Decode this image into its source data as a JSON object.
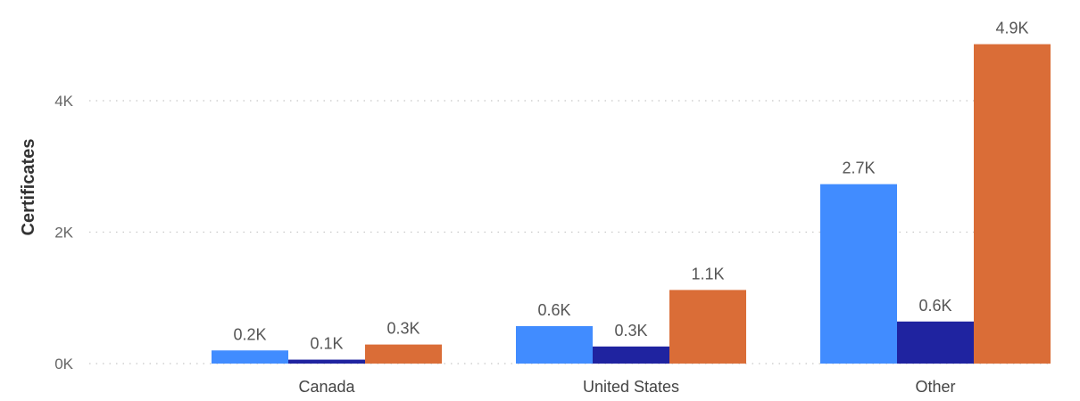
{
  "chart_data": {
    "type": "bar",
    "title": "",
    "xlabel": "",
    "ylabel": "Certificates",
    "ylim": [
      0,
      5000
    ],
    "yticks": [
      {
        "value": 0,
        "label": "0K"
      },
      {
        "value": 2000,
        "label": "2K"
      },
      {
        "value": 4000,
        "label": "4K"
      }
    ],
    "grid": true,
    "categories": [
      "Canada",
      "United States",
      "Other"
    ],
    "series": [
      {
        "color": "#418CFF",
        "values": [
          200,
          570,
          2730
        ],
        "labels": [
          "0.2K",
          "0.6K",
          "2.7K"
        ]
      },
      {
        "color": "#1F23A0",
        "values": [
          60,
          260,
          640
        ],
        "labels": [
          "0.1K",
          "0.3K",
          "0.6K"
        ]
      },
      {
        "color": "#DA6D37",
        "values": [
          290,
          1120,
          4860
        ],
        "labels": [
          "0.3K",
          "1.1K",
          "4.9K"
        ]
      }
    ]
  }
}
